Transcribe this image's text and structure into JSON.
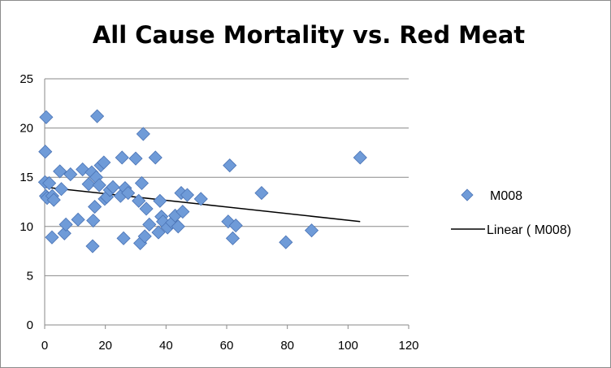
{
  "chart_data": {
    "type": "scatter",
    "title": "All Cause Mortality vs. Red Meat",
    "xlim": [
      0,
      120
    ],
    "ylim": [
      0,
      25
    ],
    "x_ticks": [
      "0",
      "20",
      "40",
      "60",
      "80",
      "100",
      "120"
    ],
    "y_ticks": [
      "0",
      "5",
      "10",
      "15",
      "20",
      "25"
    ],
    "grid": "horizontal",
    "legend_position": "right",
    "series": [
      {
        "name": "M008",
        "marker": "diamond",
        "color": "#6f9bd8",
        "points": [
          [
            0.5,
            21.1
          ],
          [
            0.2,
            17.6
          ],
          [
            0.1,
            14.5
          ],
          [
            0.4,
            13.1
          ],
          [
            0.8,
            12.9
          ],
          [
            1.5,
            14.4
          ],
          [
            2.5,
            13.1
          ],
          [
            3,
            12.7
          ],
          [
            2.4,
            8.9
          ],
          [
            5,
            15.6
          ],
          [
            5.5,
            13.8
          ],
          [
            6.5,
            9.3
          ],
          [
            7,
            10.2
          ],
          [
            8.5,
            15.3
          ],
          [
            11,
            10.7
          ],
          [
            12.5,
            15.8
          ],
          [
            14.5,
            14.3
          ],
          [
            15.5,
            15.5
          ],
          [
            15.8,
            8.0
          ],
          [
            16,
            10.6
          ],
          [
            16.5,
            12.0
          ],
          [
            17,
            15.0
          ],
          [
            17.3,
            21.2
          ],
          [
            18,
            14.2
          ],
          [
            18.5,
            16.2
          ],
          [
            19.5,
            16.5
          ],
          [
            19.8,
            12.8
          ],
          [
            20.5,
            13.0
          ],
          [
            21.5,
            13.7
          ],
          [
            22.5,
            14.0
          ],
          [
            25,
            13.1
          ],
          [
            25.5,
            17.0
          ],
          [
            26,
            8.8
          ],
          [
            26.5,
            13.9
          ],
          [
            27.5,
            13.4
          ],
          [
            30,
            16.9
          ],
          [
            31,
            12.6
          ],
          [
            31.5,
            8.3
          ],
          [
            32,
            14.4
          ],
          [
            32.5,
            19.4
          ],
          [
            33,
            9.0
          ],
          [
            33.5,
            11.8
          ],
          [
            34.5,
            10.2
          ],
          [
            36.5,
            17.0
          ],
          [
            37.5,
            9.4
          ],
          [
            38,
            12.6
          ],
          [
            38.5,
            11.0
          ],
          [
            39,
            10.5
          ],
          [
            40.5,
            9.9
          ],
          [
            42,
            10.4
          ],
          [
            43,
            11.1
          ],
          [
            44,
            10.0
          ],
          [
            45,
            13.4
          ],
          [
            45.5,
            11.5
          ],
          [
            47,
            13.2
          ],
          [
            51.5,
            12.8
          ],
          [
            60.5,
            10.5
          ],
          [
            61,
            16.2
          ],
          [
            62,
            8.8
          ],
          [
            63,
            10.1
          ],
          [
            71.5,
            13.4
          ],
          [
            79.5,
            8.4
          ],
          [
            88,
            9.6
          ],
          [
            104,
            17.0
          ]
        ]
      },
      {
        "name": "Linear ( M008)",
        "line": "linear",
        "color": "#000000",
        "points": [
          [
            0,
            14.0
          ],
          [
            104,
            10.5
          ]
        ]
      }
    ]
  }
}
